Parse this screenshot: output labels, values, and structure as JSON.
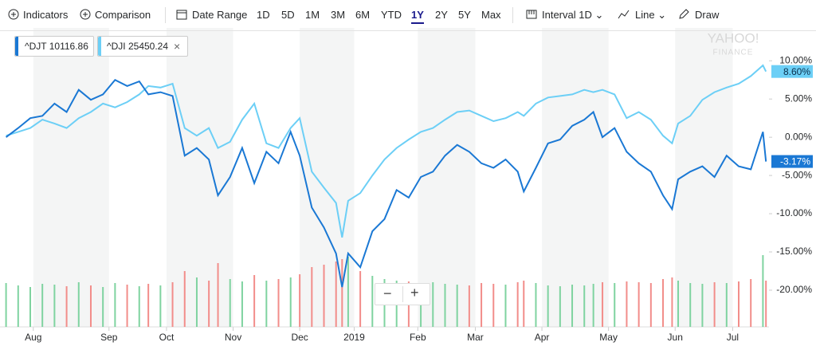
{
  "toolbar": {
    "indicators": "Indicators",
    "comparison": "Comparison",
    "date_range": "Date Range",
    "ranges": [
      "1D",
      "5D",
      "1M",
      "3M",
      "6M",
      "YTD",
      "1Y",
      "2Y",
      "5Y",
      "Max"
    ],
    "active_range": 6,
    "interval": "Interval 1D",
    "line": "Line",
    "draw": "Draw"
  },
  "watermark": {
    "brand": "YAHOO!",
    "sub": "FINANCE"
  },
  "zoom": {
    "out": "−",
    "in": "+"
  },
  "close_icon": "×",
  "chart_data": {
    "type": "line",
    "x": [
      2,
      6,
      10,
      14,
      18,
      22,
      26,
      30,
      34,
      38,
      42,
      46,
      49,
      53,
      57,
      61,
      65,
      69,
      72,
      76,
      80,
      84,
      88,
      92,
      96,
      99,
      103,
      107,
      111,
      113,
      115,
      119,
      123,
      127,
      131,
      135,
      139,
      143,
      147,
      151,
      155,
      159,
      163,
      167,
      171,
      173,
      177,
      181,
      185,
      189,
      193,
      196,
      199,
      203,
      207,
      211,
      215,
      219,
      222,
      224,
      228,
      232,
      236,
      240,
      244,
      248,
      252,
      253
    ],
    "xlim": [
      0,
      254
    ],
    "xticks": [
      {
        "value": 11,
        "label": "Aug"
      },
      {
        "value": 36,
        "label": "Sep"
      },
      {
        "value": 55,
        "label": "Oct"
      },
      {
        "value": 77,
        "label": "Nov"
      },
      {
        "value": 99,
        "label": "Dec"
      },
      {
        "value": 117,
        "label": "2019"
      },
      {
        "value": 138,
        "label": "Feb"
      },
      {
        "value": 157,
        "label": "Mar"
      },
      {
        "value": 179,
        "label": "Apr"
      },
      {
        "value": 201,
        "label": "May"
      },
      {
        "value": 223,
        "label": "Jun"
      },
      {
        "value": 242,
        "label": "Jul"
      }
    ],
    "ylim": [
      -24.8,
      14.3
    ],
    "yticks": [
      {
        "value": 10,
        "label": "10.00%"
      },
      {
        "value": 5,
        "label": "5.00%"
      },
      {
        "value": 0,
        "label": "0.00%"
      },
      {
        "value": -5,
        "label": "-5.00%"
      },
      {
        "value": -10,
        "label": "-10.00%"
      },
      {
        "value": -15,
        "label": "-15.00%"
      },
      {
        "value": -20,
        "label": "-20.00%"
      }
    ],
    "series": [
      {
        "name": "^DJT 10116.86",
        "color": "#1a78d4",
        "last_value_label": "-3.17%",
        "values": [
          0,
          1.2,
          2.5,
          2.8,
          4.4,
          3.3,
          6.2,
          4.9,
          5.6,
          7.5,
          6.7,
          7.3,
          5.6,
          5.9,
          5.4,
          -2.4,
          -1.4,
          -2.9,
          -7.6,
          -5.2,
          -1.4,
          -6.0,
          -1.9,
          -3.4,
          0.7,
          -2.4,
          -9.2,
          -11.8,
          -15.2,
          -19.6,
          -15.2,
          -17.0,
          -12.3,
          -10.7,
          -6.9,
          -7.9,
          -5.2,
          -4.5,
          -2.4,
          -1.0,
          -1.9,
          -3.4,
          -4.0,
          -2.9,
          -4.5,
          -7.1,
          -4.0,
          -0.8,
          -0.3,
          1.5,
          2.3,
          3.3,
          0,
          1.2,
          -1.9,
          -3.4,
          -4.5,
          -7.6,
          -9.4,
          -5.5,
          -4.5,
          -3.8,
          -5.2,
          -2.4,
          -3.8,
          -4.2,
          0.7,
          -3.17
        ]
      },
      {
        "name": "^DJI 25450.24",
        "color": "#6ccff6",
        "last_value_label": "8.60%",
        "values": [
          0.2,
          0.7,
          1.2,
          2.3,
          1.8,
          1.2,
          2.5,
          3.3,
          4.4,
          3.9,
          4.6,
          5.6,
          6.7,
          6.5,
          7.0,
          1.2,
          0.2,
          1.2,
          -1.4,
          -0.6,
          2.3,
          4.4,
          -0.8,
          -1.4,
          1.2,
          2.5,
          -4.5,
          -6.6,
          -8.6,
          -13.1,
          -8.3,
          -7.3,
          -5.0,
          -2.9,
          -1.4,
          -0.3,
          0.7,
          1.2,
          2.3,
          3.3,
          3.5,
          2.8,
          2.1,
          2.5,
          3.3,
          2.8,
          4.4,
          5.2,
          5.4,
          5.6,
          6.2,
          5.9,
          6.2,
          5.6,
          2.5,
          3.3,
          2.3,
          0.2,
          -0.8,
          1.8,
          2.8,
          4.9,
          5.9,
          6.5,
          7.0,
          8.0,
          9.4,
          8.6
        ]
      }
    ],
    "volume": {
      "up_color": "#7fd3a0",
      "down_color": "#f28d8a",
      "vlim": [
        0,
        100
      ],
      "values": [
        55,
        52,
        50,
        54,
        53,
        51,
        56,
        52,
        50,
        55,
        53,
        51,
        54,
        52,
        56,
        70,
        62,
        58,
        80,
        60,
        57,
        65,
        58,
        60,
        62,
        66,
        75,
        78,
        82,
        85,
        88,
        70,
        64,
        60,
        58,
        57,
        55,
        56,
        54,
        53,
        52,
        55,
        54,
        53,
        56,
        58,
        55,
        52,
        51,
        53,
        52,
        54,
        56,
        55,
        57,
        56,
        55,
        60,
        62,
        58,
        55,
        54,
        56,
        55,
        57,
        60,
        90,
        58
      ]
    }
  }
}
